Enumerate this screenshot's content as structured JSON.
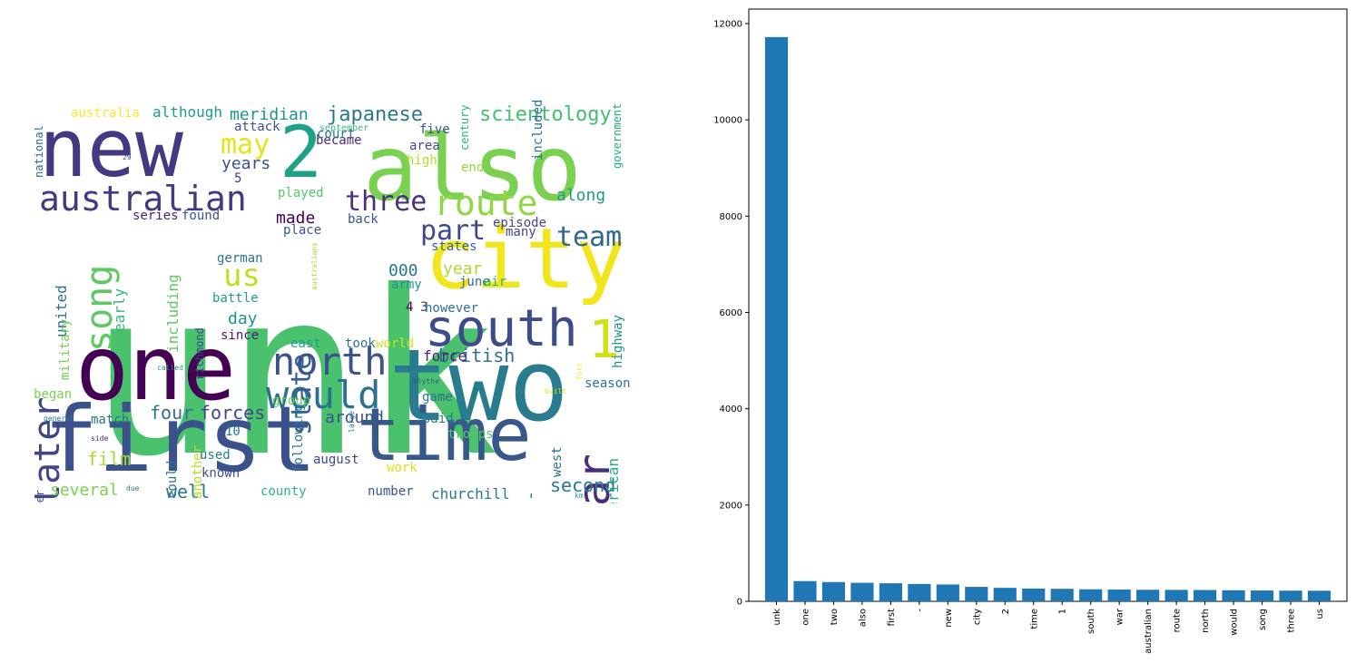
{
  "wordcloud": {
    "words": [
      {
        "text": "unk",
        "color": "#49c16d"
      },
      {
        "text": "also",
        "color": "#7ad151"
      },
      {
        "text": "new",
        "color": "#453781"
      },
      {
        "text": "one",
        "color": "#440154"
      },
      {
        "text": "two",
        "color": "#287c8e"
      },
      {
        "text": "first",
        "color": "#3b518b"
      },
      {
        "text": "time",
        "color": "#38588c"
      },
      {
        "text": "city",
        "color": "#f1e51d"
      },
      {
        "text": "2",
        "color": "#1fa187"
      },
      {
        "text": "south",
        "color": "#3e4c8a"
      },
      {
        "text": "1",
        "color": "#d0e11c"
      },
      {
        "text": "australian",
        "color": "#443983"
      },
      {
        "text": "route",
        "color": "#8fd744"
      },
      {
        "text": "war",
        "color": "#472d7b"
      },
      {
        "text": "north",
        "color": "#3b528b"
      },
      {
        "text": "would",
        "color": "#2c728e"
      },
      {
        "text": "song",
        "color": "#5ec962"
      },
      {
        "text": "three",
        "color": "#46327e"
      },
      {
        "text": "us",
        "color": "#bddf26"
      },
      {
        "text": "later",
        "color": "#414487"
      },
      {
        "text": "state",
        "color": "#355f8d"
      },
      {
        "text": "part",
        "color": "#3e4989"
      },
      {
        "text": "team",
        "color": "#31688e"
      },
      {
        "text": "may",
        "color": "#e5e419"
      },
      {
        "text": "scientology",
        "color": "#42be71"
      },
      {
        "text": "japanese",
        "color": "#2a788e"
      },
      {
        "text": "meridian",
        "color": "#20928c"
      },
      {
        "text": "british",
        "color": "#2d708e"
      },
      {
        "text": "force",
        "color": "#482173"
      },
      {
        "text": "forces",
        "color": "#3f4788"
      },
      {
        "text": "four",
        "color": "#2c728e"
      },
      {
        "text": "around",
        "color": "#3a548c"
      },
      {
        "text": "film",
        "color": "#a5db36"
      },
      {
        "text": "second",
        "color": "#2a788e"
      },
      {
        "text": "several",
        "color": "#7ad151"
      },
      {
        "text": "well",
        "color": "#2a788e"
      },
      {
        "text": "american",
        "color": "#22a884"
      },
      {
        "text": "highway",
        "color": "#21918c"
      },
      {
        "text": "including",
        "color": "#5ec962"
      },
      {
        "text": "early",
        "color": "#35b779"
      },
      {
        "text": "united",
        "color": "#2c728e"
      },
      {
        "text": "000",
        "color": "#2a788e"
      },
      {
        "text": "year",
        "color": "#addc30"
      },
      {
        "text": "along",
        "color": "#1e9b8a"
      },
      {
        "text": "made",
        "color": "#440154"
      },
      {
        "text": "years",
        "color": "#3b528b"
      },
      {
        "text": "day",
        "color": "#21918c"
      },
      {
        "text": "churchill",
        "color": "#2a788e"
      },
      {
        "text": "-",
        "color": "#2c728e"
      },
      {
        "text": "australia",
        "color": "#fde725"
      },
      {
        "text": "although",
        "color": "#1e9b8a"
      },
      {
        "text": "national",
        "color": "#2d708e"
      },
      {
        "text": "attack",
        "color": "#3b528b"
      },
      {
        "text": "became",
        "color": "#482878"
      },
      {
        "text": "court",
        "color": "#2c728e"
      },
      {
        "text": "five",
        "color": "#3b528b"
      },
      {
        "text": "area",
        "color": "#3e4989"
      },
      {
        "text": "high",
        "color": "#b5de2b"
      },
      {
        "text": "end",
        "color": "#8fd744"
      },
      {
        "text": "century",
        "color": "#2db27d"
      },
      {
        "text": "included",
        "color": "#2d708e"
      },
      {
        "text": "government",
        "color": "#25ab82"
      },
      {
        "text": "played",
        "color": "#54c568"
      },
      {
        "text": "5",
        "color": "#443983"
      },
      {
        "text": "series",
        "color": "#482475"
      },
      {
        "text": "found",
        "color": "#3b528b"
      },
      {
        "text": "back",
        "color": "#3b528b"
      },
      {
        "text": "episode",
        "color": "#3f4788"
      },
      {
        "text": "place",
        "color": "#3a548c"
      },
      {
        "text": "states",
        "color": "#31688e"
      },
      {
        "text": "many",
        "color": "#404688"
      },
      {
        "text": "german",
        "color": "#2d708e"
      },
      {
        "text": "army",
        "color": "#21918c"
      },
      {
        "text": "june",
        "color": "#2e6e8e"
      },
      {
        "text": "air",
        "color": "#2db27d"
      },
      {
        "text": "battle",
        "color": "#1f9a8a"
      },
      {
        "text": "4",
        "color": "#440154"
      },
      {
        "text": "3",
        "color": "#453781"
      },
      {
        "text": "however",
        "color": "#2c728e"
      },
      {
        "text": "since",
        "color": "#48186a"
      },
      {
        "text": "took",
        "color": "#2c728e"
      },
      {
        "text": "east",
        "color": "#1f9e89"
      },
      {
        "text": "world",
        "color": "#d0e11c"
      },
      {
        "text": "richmond",
        "color": "#3e4989"
      },
      {
        "text": "australians",
        "color": "#a0da39"
      },
      {
        "text": "military",
        "color": "#73d056"
      },
      {
        "text": "began",
        "color": "#7ad151"
      },
      {
        "text": "match",
        "color": "#2c728e"
      },
      {
        "text": "group",
        "color": "#6ccd5a"
      },
      {
        "text": "10",
        "color": "#2a788e"
      },
      {
        "text": "could",
        "color": "#2c728e"
      },
      {
        "text": "another",
        "color": "#b8de29"
      },
      {
        "text": "used",
        "color": "#2a788e"
      },
      {
        "text": "known",
        "color": "#3e4c8a"
      },
      {
        "text": "county",
        "color": "#2db27d"
      },
      {
        "text": "following",
        "color": "#2a788e"
      },
      {
        "text": "august",
        "color": "#3f4788"
      },
      {
        "text": "game",
        "color": "#2d708e"
      },
      {
        "text": "said",
        "color": "#2a788e"
      },
      {
        "text": "troops",
        "color": "#54c568"
      },
      {
        "text": "work",
        "color": "#d8e219"
      },
      {
        "text": "number",
        "color": "#3b528b"
      },
      {
        "text": "west",
        "color": "#2d708e"
      },
      {
        "text": "season",
        "color": "#2c728e"
      },
      {
        "text": "river",
        "color": "#3b528b"
      },
      {
        "text": "12",
        "color": "#3b528b"
      },
      {
        "text": "september",
        "color": "#35b779"
      },
      {
        "text": "29",
        "color": "#3b528b"
      },
      {
        "text": "called",
        "color": "#21918c"
      },
      {
        "text": "general",
        "color": "#2a788e"
      },
      {
        "text": "side",
        "color": "#482878"
      },
      {
        "text": "due",
        "color": "#2c728e"
      },
      {
        "text": "large",
        "color": "#2a788e"
      },
      {
        "text": "blythe",
        "color": "#3b528b"
      },
      {
        "text": "built",
        "color": "#dde318"
      },
      {
        "text": "fort",
        "color": "#fde725"
      },
      {
        "text": "km",
        "color": "#21918c"
      },
      {
        "text": "men",
        "color": "#453781"
      },
      {
        "text": "late",
        "color": "#5ec962"
      }
    ]
  },
  "chart_data": {
    "type": "bar",
    "bar_color": "#1f77b4",
    "categories": [
      "unk",
      "one",
      "two",
      "also",
      "first",
      "-",
      "new",
      "city",
      "2",
      "time",
      "1",
      "south",
      "war",
      "australian",
      "route",
      "north",
      "would",
      "song",
      "three",
      "us"
    ],
    "values": [
      11720,
      420,
      400,
      385,
      375,
      360,
      350,
      300,
      280,
      265,
      260,
      250,
      245,
      240,
      238,
      235,
      230,
      225,
      222,
      220
    ],
    "ylim": [
      0,
      12000
    ],
    "yticks": [
      0,
      2000,
      4000,
      6000,
      8000,
      10000,
      12000
    ],
    "title": "",
    "xlabel": "",
    "ylabel": "",
    "grid": false
  }
}
